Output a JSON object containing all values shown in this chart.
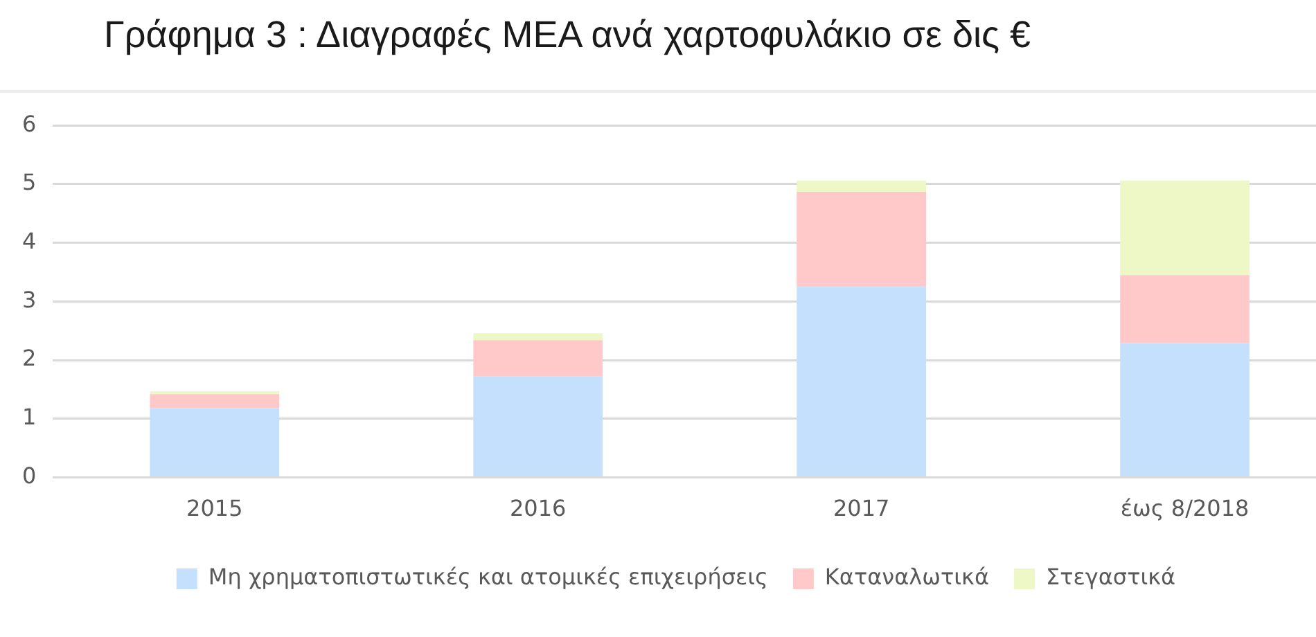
{
  "chart_data": {
    "type": "bar",
    "title": "Γράφημα 3 : Διαγραφές ΜΕΑ ανά χαρτοφυλάκιο σε δις €",
    "categories": [
      "2015",
      "2016",
      "2017",
      "έως 8/2018"
    ],
    "series": [
      {
        "name": "Μη χρηματοπιστωτικές και ατομικές επιχειρήσεις",
        "color": "#c5e0fc",
        "values": [
          1.18,
          1.72,
          3.25,
          2.29
        ]
      },
      {
        "name": "Καταναλωτικά",
        "color": "#ffc9c9",
        "values": [
          0.24,
          0.62,
          1.62,
          1.16
        ]
      },
      {
        "name": "Στεγαστικά",
        "color": "#eef8c6",
        "values": [
          0.05,
          0.12,
          0.19,
          1.61
        ]
      }
    ],
    "stacked": true,
    "ylim": [
      0,
      6
    ],
    "yticks": [
      0,
      1,
      2,
      3,
      4,
      5,
      6
    ],
    "grid": "y",
    "legend": "bottom"
  }
}
